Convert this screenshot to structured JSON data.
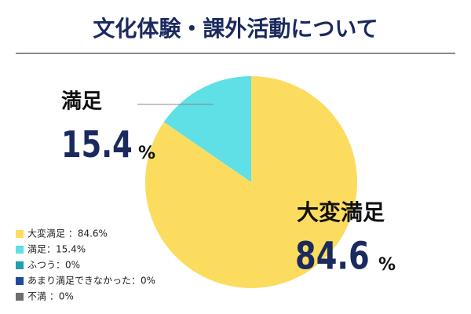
{
  "chart_data": {
    "type": "pie",
    "title": "文化体験・課外活動について",
    "categories": [
      "大変満足",
      "満足",
      "ふつう",
      "あまり満足できなかった",
      "不満"
    ],
    "values": [
      84.6,
      15.4,
      0,
      0,
      0
    ],
    "unit": "%",
    "legend_labels": [
      "大変満足 ：84.6%",
      "満足：15.4%",
      "ふつう：0%",
      "あまり満足できなかった：0%",
      "不満 ：0%"
    ],
    "colors": [
      "#fcdc5e",
      "#5fdfe6",
      "#1ea0ad",
      "#1c4b9c",
      "#6e6e6e"
    ]
  }
}
